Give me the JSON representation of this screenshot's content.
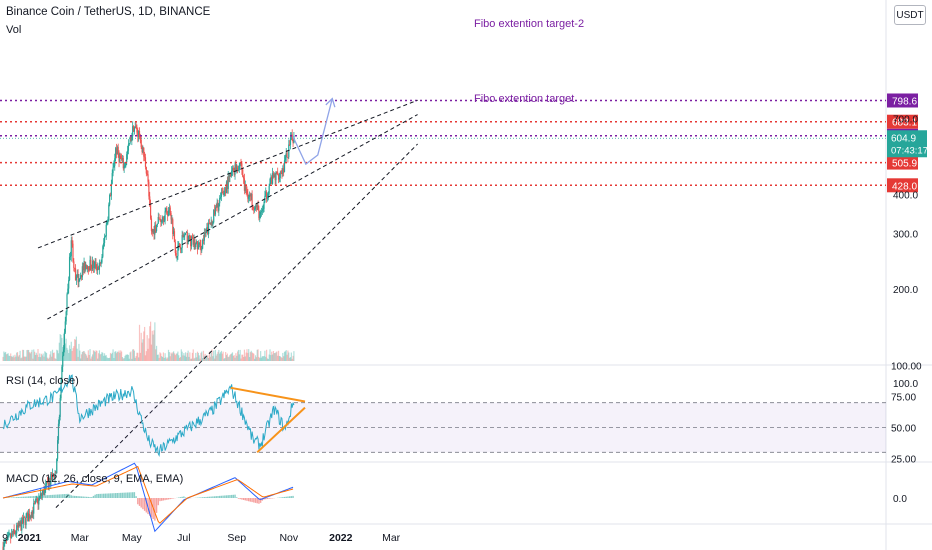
{
  "header": {
    "symbol_title": "Binance Coin / TetherUS, 1D, BINANCE",
    "volume_label": "Vol",
    "currency_unit": "USDT"
  },
  "colors": {
    "up": "#26a69a",
    "down": "#ef5350",
    "rsi_line": "#2ca9c7",
    "rsi_band": "#7e57c2",
    "macd_line": "#2962ff",
    "signal_line": "#ff6d00",
    "trend_orange": "#f7931a",
    "fibo_purple": "#7b1fa2",
    "red_level": "#e53935",
    "projection": "#90a4e8"
  },
  "chart_data": [
    {
      "type": "line",
      "pane": "price",
      "title": "Binance Coin / TetherUS, 1D, BINANCE",
      "x_tick_labels": [
        "9",
        "2021",
        "Mar",
        "May",
        "Jul",
        "Sep",
        "Nov",
        "2022",
        "Mar"
      ],
      "y_tick_labels": [
        "100.0",
        "200.0",
        "300.0",
        "400.0",
        "700.0"
      ],
      "price_path": [
        [
          "2020-12-01",
          30
        ],
        [
          "2021-01-01",
          38
        ],
        [
          "2021-02-01",
          52
        ],
        [
          "2021-02-09",
          120
        ],
        [
          "2021-02-19",
          290
        ],
        [
          "2021-02-24",
          210
        ],
        [
          "2021-03-08",
          240
        ],
        [
          "2021-03-25",
          235
        ],
        [
          "2021-04-02",
          330
        ],
        [
          "2021-04-12",
          560
        ],
        [
          "2021-04-22",
          490
        ],
        [
          "2021-05-03",
          660
        ],
        [
          "2021-05-10",
          620
        ],
        [
          "2021-05-19",
          470
        ],
        [
          "2021-05-24",
          300
        ],
        [
          "2021-06-01",
          330
        ],
        [
          "2021-06-15",
          360
        ],
        [
          "2021-06-22",
          260
        ],
        [
          "2021-07-01",
          295
        ],
        [
          "2021-07-20",
          270
        ],
        [
          "2021-08-10",
          370
        ],
        [
          "2021-08-28",
          480
        ],
        [
          "2021-09-06",
          505
        ],
        [
          "2021-09-10",
          420
        ],
        [
          "2021-09-20",
          380
        ],
        [
          "2021-09-29",
          340
        ],
        [
          "2021-10-10",
          440
        ],
        [
          "2021-10-25",
          480
        ],
        [
          "2021-11-05",
          610
        ],
        [
          "2021-11-07",
          604.9
        ]
      ],
      "horizontal_levels": [
        {
          "value": 798.6,
          "label": "798.6",
          "style": "fibo"
        },
        {
          "value": 683.1,
          "label": "683.1",
          "style": "red"
        },
        {
          "value": 616.0,
          "label": "616.0",
          "style": "fibo"
        },
        {
          "value": 505.9,
          "label": "505.9",
          "style": "red"
        },
        {
          "value": 428.0,
          "label": "428.0",
          "style": "red"
        }
      ],
      "current_price": {
        "value": 604.9,
        "label": "604.9",
        "countdown": "07:43:17"
      },
      "annotations": [
        "Fibo extention target-2",
        "Fibo extention target"
      ],
      "channel_lines": [
        [
          [
            "2021-01-11",
            270
          ],
          [
            "2022-04-01",
            800
          ]
        ],
        [
          [
            "2021-01-22",
            160
          ],
          [
            "2022-04-01",
            720
          ]
        ],
        [
          [
            "2021-02-01",
            40
          ],
          [
            "2022-04-01",
            580
          ]
        ]
      ],
      "projection_path": [
        [
          "2021-11-06",
          612
        ],
        [
          "2021-11-21",
          500
        ],
        [
          "2021-12-05",
          535
        ],
        [
          "2021-12-22",
          810
        ]
      ]
    },
    {
      "type": "line",
      "pane": "rsi",
      "title": "RSI (14, close)",
      "y_tick_labels": [
        "100.00",
        "75.00",
        "50.00",
        "25.00"
      ],
      "ylim": [
        25,
        100
      ],
      "band": [
        30,
        70
      ],
      "path": [
        [
          "2020-12-01",
          52
        ],
        [
          "2021-01-01",
          68
        ],
        [
          "2021-02-01",
          75
        ],
        [
          "2021-02-19",
          92
        ],
        [
          "2021-03-01",
          58
        ],
        [
          "2021-04-01",
          72
        ],
        [
          "2021-05-01",
          80
        ],
        [
          "2021-05-20",
          40
        ],
        [
          "2021-06-01",
          30
        ],
        [
          "2021-06-22",
          42
        ],
        [
          "2021-08-01",
          62
        ],
        [
          "2021-08-25",
          82
        ],
        [
          "2021-09-10",
          58
        ],
        [
          "2021-09-20",
          40
        ],
        [
          "2021-09-29",
          36
        ],
        [
          "2021-10-15",
          65
        ],
        [
          "2021-10-28",
          48
        ],
        [
          "2021-11-07",
          72
        ]
      ],
      "trendlines": [
        [
          [
            "2021-08-25",
            82
          ],
          [
            "2021-11-20",
            71
          ]
        ],
        [
          [
            "2021-09-25",
            30
          ],
          [
            "2021-11-20",
            66
          ]
        ]
      ]
    },
    {
      "type": "line",
      "pane": "macd",
      "title": "MACD (12, 26, close, 9, EMA, EMA)",
      "y_tick_labels": [
        "0.0"
      ],
      "series": [
        {
          "name": "MACD",
          "values": [
            [
              "2020-12-01",
              0
            ],
            [
              "2021-02-15",
              45
            ],
            [
              "2021-03-15",
              35
            ],
            [
              "2021-05-05",
              95
            ],
            [
              "2021-05-28",
              -90
            ],
            [
              "2021-07-01",
              -5
            ],
            [
              "2021-08-30",
              55
            ],
            [
              "2021-09-28",
              -5
            ],
            [
              "2021-11-07",
              30
            ]
          ]
        },
        {
          "name": "Signal",
          "values": [
            [
              "2020-12-01",
              0
            ],
            [
              "2021-02-20",
              38
            ],
            [
              "2021-03-20",
              32
            ],
            [
              "2021-05-08",
              85
            ],
            [
              "2021-06-02",
              -70
            ],
            [
              "2021-07-05",
              0
            ],
            [
              "2021-09-02",
              50
            ],
            [
              "2021-10-02",
              2
            ],
            [
              "2021-11-07",
              25
            ]
          ]
        }
      ]
    }
  ]
}
